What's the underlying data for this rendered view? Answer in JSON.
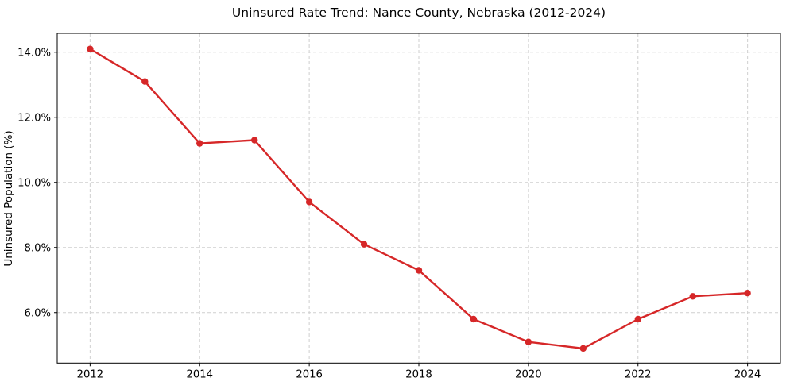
{
  "chart_data": {
    "type": "line",
    "title": "Uninsured Rate Trend: Nance County, Nebraska (2012-2024)",
    "xlabel": "",
    "ylabel": "Uninsured Population (%)",
    "series_name": "Uninsured rate",
    "x": [
      2012,
      2013,
      2014,
      2015,
      2016,
      2017,
      2018,
      2019,
      2020,
      2021,
      2022,
      2023,
      2024
    ],
    "values": [
      14.1,
      13.1,
      11.2,
      11.3,
      9.4,
      8.1,
      7.3,
      5.8,
      5.1,
      4.9,
      5.8,
      6.5,
      6.6
    ],
    "x_ticks": [
      2012,
      2014,
      2016,
      2018,
      2020,
      2022,
      2024
    ],
    "y_ticks": [
      6,
      8,
      10,
      12,
      14
    ],
    "y_tick_suffix": "%",
    "xlim": [
      2011.4,
      2024.6
    ],
    "ylim": [
      4.45,
      14.58
    ],
    "grid": true,
    "legend": "none",
    "line_color": "#d62728",
    "marker_color": "#d62728",
    "grid_color": "#cfcfcf",
    "spine_color": "#000000",
    "text_color": "#000000",
    "background": "#ffffff"
  }
}
